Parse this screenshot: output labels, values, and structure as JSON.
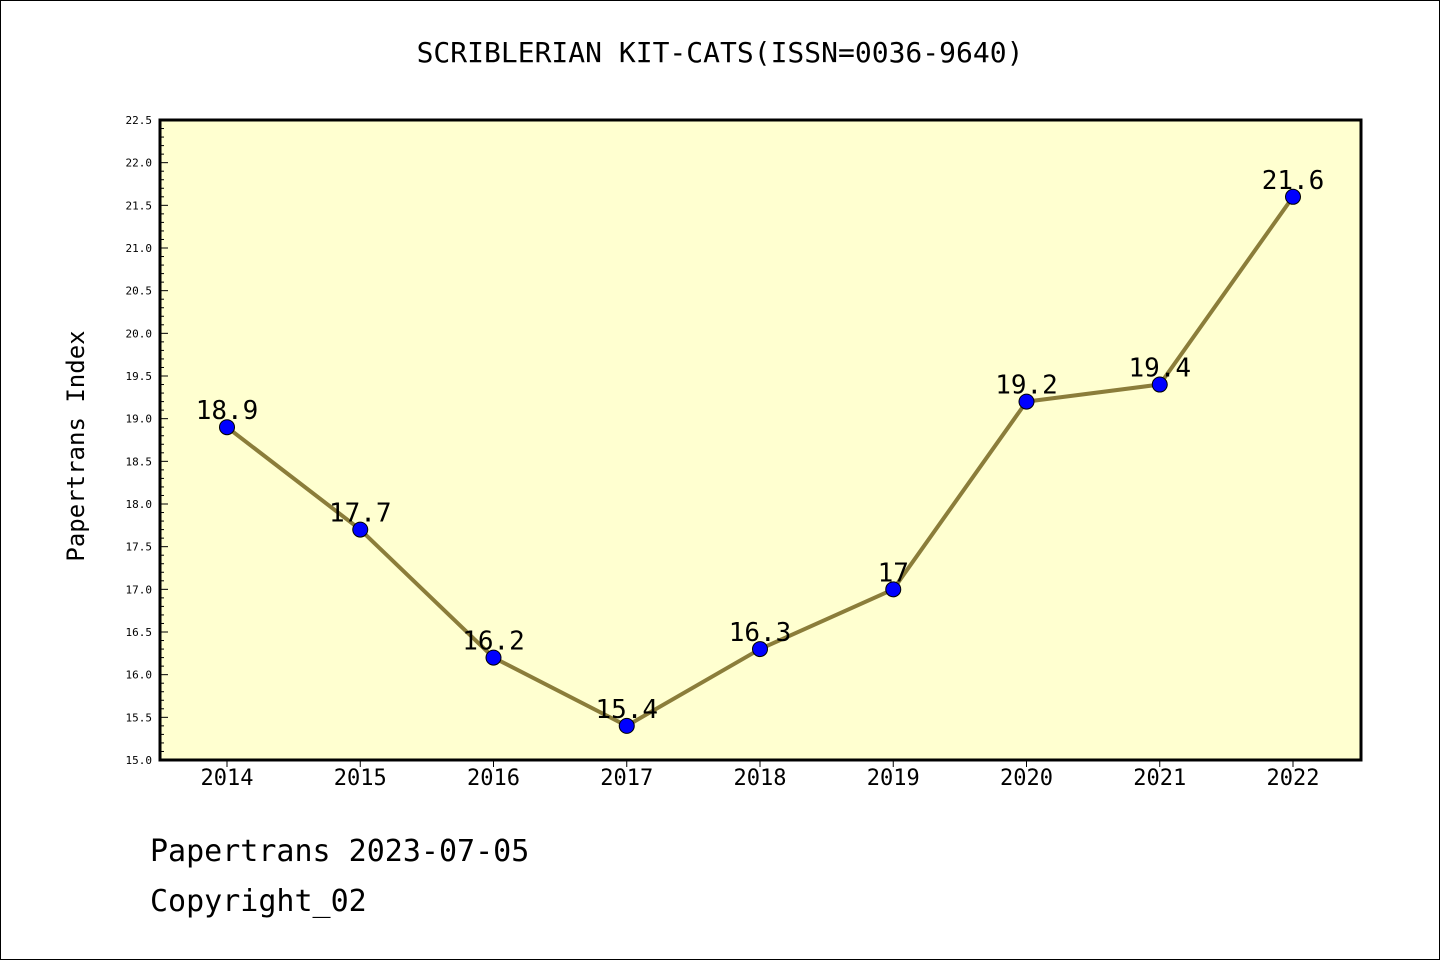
{
  "chart_data": {
    "type": "line",
    "title": "SCRIBLERIAN KIT-CATS(ISSN=0036-9640)",
    "xlabel": "",
    "ylabel": "Papertrans Index",
    "categories": [
      "2014",
      "2015",
      "2016",
      "2017",
      "2018",
      "2019",
      "2020",
      "2021",
      "2022"
    ],
    "series": [
      {
        "values": [
          18.9,
          17.7,
          16.2,
          15.4,
          16.3,
          17,
          19.2,
          19.4,
          21.6
        ]
      }
    ],
    "data_labels": [
      "18.9",
      "17.7",
      "16.2",
      "15.4",
      "16.3",
      "17",
      "19.2",
      "19.4",
      "21.6"
    ],
    "ylim": [
      15.0,
      22.5
    ],
    "yticks": [
      "15.0",
      "15.5",
      "16.0",
      "16.5",
      "17.0",
      "17.5",
      "18.0",
      "18.5",
      "19.0",
      "19.5",
      "20.0",
      "20.5",
      "21.0",
      "21.5",
      "22.0",
      "22.5"
    ],
    "grid": false,
    "legend": "none"
  },
  "colors": {
    "plot_background": "#ffffd0",
    "line": "#8b7d3a",
    "marker": "#0000ff"
  },
  "footer": {
    "line1": "Papertrans 2023-07-05",
    "line2": "Copyright_02"
  }
}
